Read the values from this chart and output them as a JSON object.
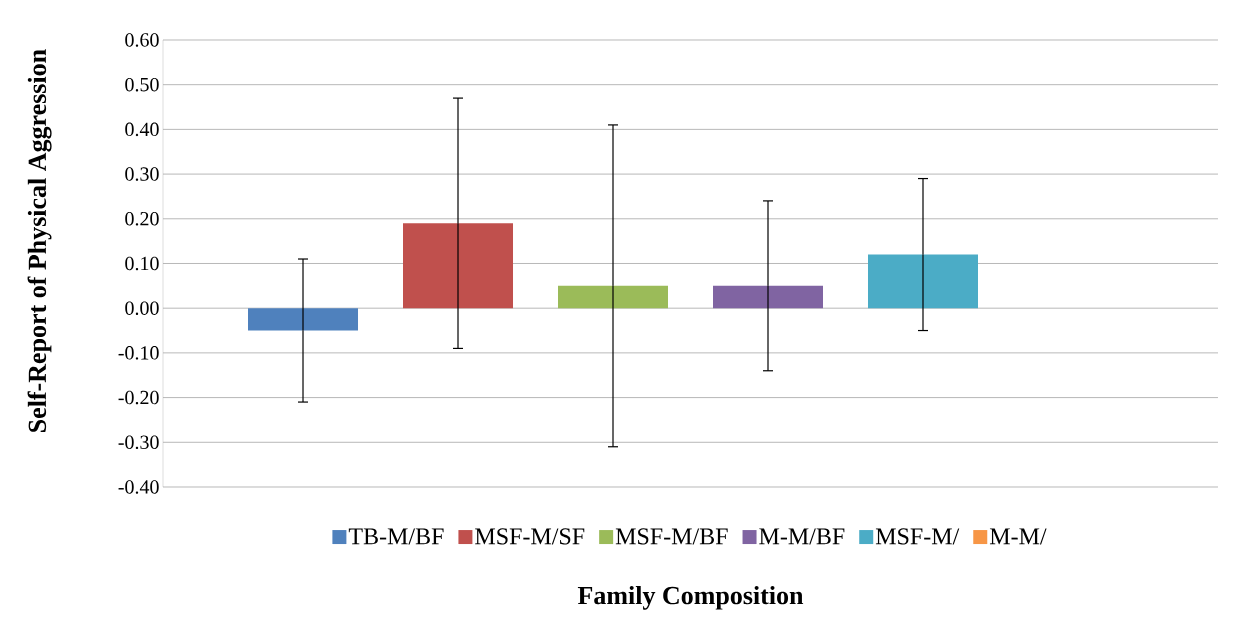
{
  "chart_data": {
    "type": "bar",
    "xlabel": "Family Composition",
    "ylabel": "Self-Report of Physical Aggression",
    "categories": [
      null
    ],
    "series": [
      {
        "name": "TB-M/BF",
        "color": "#4f81bd",
        "values": [
          -0.05
        ],
        "errors": [
          0.16
        ]
      },
      {
        "name": "MSF-M/SF",
        "color": "#c0504d",
        "values": [
          0.19
        ],
        "errors": [
          0.28
        ]
      },
      {
        "name": "MSF-M/BF",
        "color": "#9bbb59",
        "values": [
          0.05
        ],
        "errors": [
          0.36
        ]
      },
      {
        "name": "M-M/BF",
        "color": "#8064a2",
        "values": [
          0.05
        ],
        "errors": [
          0.19
        ]
      },
      {
        "name": "MSF-M/",
        "color": "#4bacc6",
        "values": [
          0.12
        ],
        "errors": [
          0.17
        ]
      },
      {
        "name": "M-M/",
        "color": "#f79646",
        "values": [
          null
        ]
      }
    ],
    "ylim": [
      -0.4,
      0.6
    ],
    "yticks": [
      {
        "value": -0.4,
        "label": "-0.40"
      },
      {
        "value": -0.3,
        "label": "-0.30"
      },
      {
        "value": -0.2,
        "label": "-0.20"
      },
      {
        "value": -0.1,
        "label": "-0.10"
      },
      {
        "value": 0,
        "label": "0.00"
      },
      {
        "value": 0.1,
        "label": "0.10"
      },
      {
        "value": 0.2,
        "label": "0.20"
      },
      {
        "value": 0.3,
        "label": "0.30"
      },
      {
        "value": 0.4,
        "label": "0.40"
      },
      {
        "value": 0.5,
        "label": "0.50"
      },
      {
        "value": 0.6,
        "label": "0.60"
      }
    ],
    "grid": "y",
    "legend": "bottom"
  }
}
